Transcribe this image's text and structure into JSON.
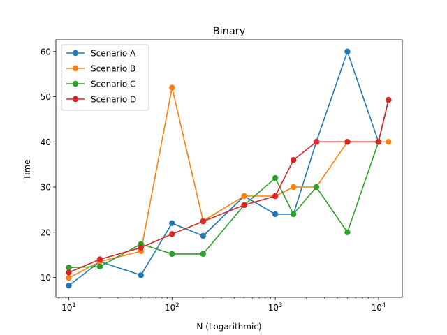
{
  "chart_data": {
    "type": "line",
    "title": "Binary",
    "xlabel": "N (Logarithmic)",
    "ylabel": "Time",
    "xscale": "log",
    "x": [
      10,
      20,
      50,
      100,
      200,
      500,
      1000,
      1500,
      2500,
      5000,
      10000,
      12500
    ],
    "xlim": [
      7.5,
      17000
    ],
    "ylim": [
      5.6,
      62.6
    ],
    "xticks": [
      {
        "value": 10,
        "base": "10",
        "exp": "1"
      },
      {
        "value": 100,
        "base": "10",
        "exp": "2"
      },
      {
        "value": 1000,
        "base": "10",
        "exp": "3"
      },
      {
        "value": 10000,
        "base": "10",
        "exp": "4"
      }
    ],
    "yticks": [
      10,
      20,
      30,
      40,
      50,
      60
    ],
    "legend_position": "top-left",
    "grid": false,
    "series": [
      {
        "name": "Scenario A",
        "color": "#1f77b4",
        "values": [
          8.2,
          13.5,
          10.5,
          22.0,
          19.2,
          28.0,
          24.0,
          24.0,
          40.0,
          60.0,
          40.0,
          49.3
        ]
      },
      {
        "name": "Scenario B",
        "color": "#ff7f0e",
        "values": [
          9.9,
          13.5,
          15.8,
          52.0,
          22.5,
          28.0,
          28.0,
          30.0,
          30.0,
          40.0,
          40.0,
          40.0
        ]
      },
      {
        "name": "Scenario C",
        "color": "#2ca02c",
        "values": [
          12.2,
          12.4,
          17.4,
          15.2,
          15.2,
          26.0,
          32.0,
          24.0,
          30.0,
          20.0,
          40.0,
          49.3
        ]
      },
      {
        "name": "Scenario D",
        "color": "#d62728",
        "values": [
          11.1,
          14.0,
          16.6,
          19.6,
          22.4,
          26.0,
          28.0,
          36.0,
          40.0,
          40.0,
          40.0,
          49.3
        ]
      }
    ]
  }
}
